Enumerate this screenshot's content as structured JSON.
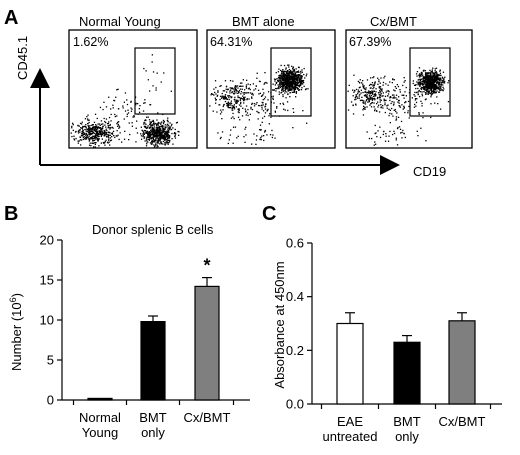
{
  "panels": {
    "a": "A",
    "b": "B",
    "c": "C"
  },
  "flow": {
    "x_axis_label": "CD19",
    "y_axis_label": "CD45.1",
    "plots": [
      {
        "title": "Normal Young",
        "percent": "1.62%"
      },
      {
        "title": "BMT alone",
        "percent": "64.31%"
      },
      {
        "title": "Cx/BMT",
        "percent": "67.39%"
      }
    ]
  },
  "chart_data": [
    {
      "type": "bar",
      "panel": "B",
      "title": "Donor splenic  B cells",
      "ylabel": "Number (10",
      "ylabel_sup": "6",
      "ylabel_close": ")",
      "xlabel": "",
      "ylim": [
        0,
        20
      ],
      "yticks": [
        0,
        5,
        10,
        15,
        20
      ],
      "categories": [
        [
          "Normal",
          "Young"
        ],
        [
          "BMT",
          "only"
        ],
        [
          "Cx/BMT"
        ]
      ],
      "values": [
        0.2,
        9.8,
        14.2
      ],
      "errors": [
        0,
        0.7,
        1.1
      ],
      "colors": [
        "#000000",
        "#000000",
        "#7f7f7f"
      ],
      "significance": [
        "",
        "",
        "*"
      ]
    },
    {
      "type": "bar",
      "panel": "C",
      "title": "",
      "ylabel": "Absorbance at 450nm",
      "xlabel": "",
      "ylim": [
        0,
        0.6
      ],
      "yticks": [
        0,
        0.2,
        0.4,
        0.6
      ],
      "categories": [
        [
          "EAE",
          "untreated"
        ],
        [
          "BMT",
          "only"
        ],
        [
          "Cx/BMT"
        ]
      ],
      "values": [
        0.3,
        0.23,
        0.31
      ],
      "errors": [
        0.04,
        0.025,
        0.03
      ],
      "colors": [
        "#ffffff",
        "#000000",
        "#7f7f7f"
      ],
      "significance": [
        "",
        "",
        ""
      ]
    }
  ]
}
